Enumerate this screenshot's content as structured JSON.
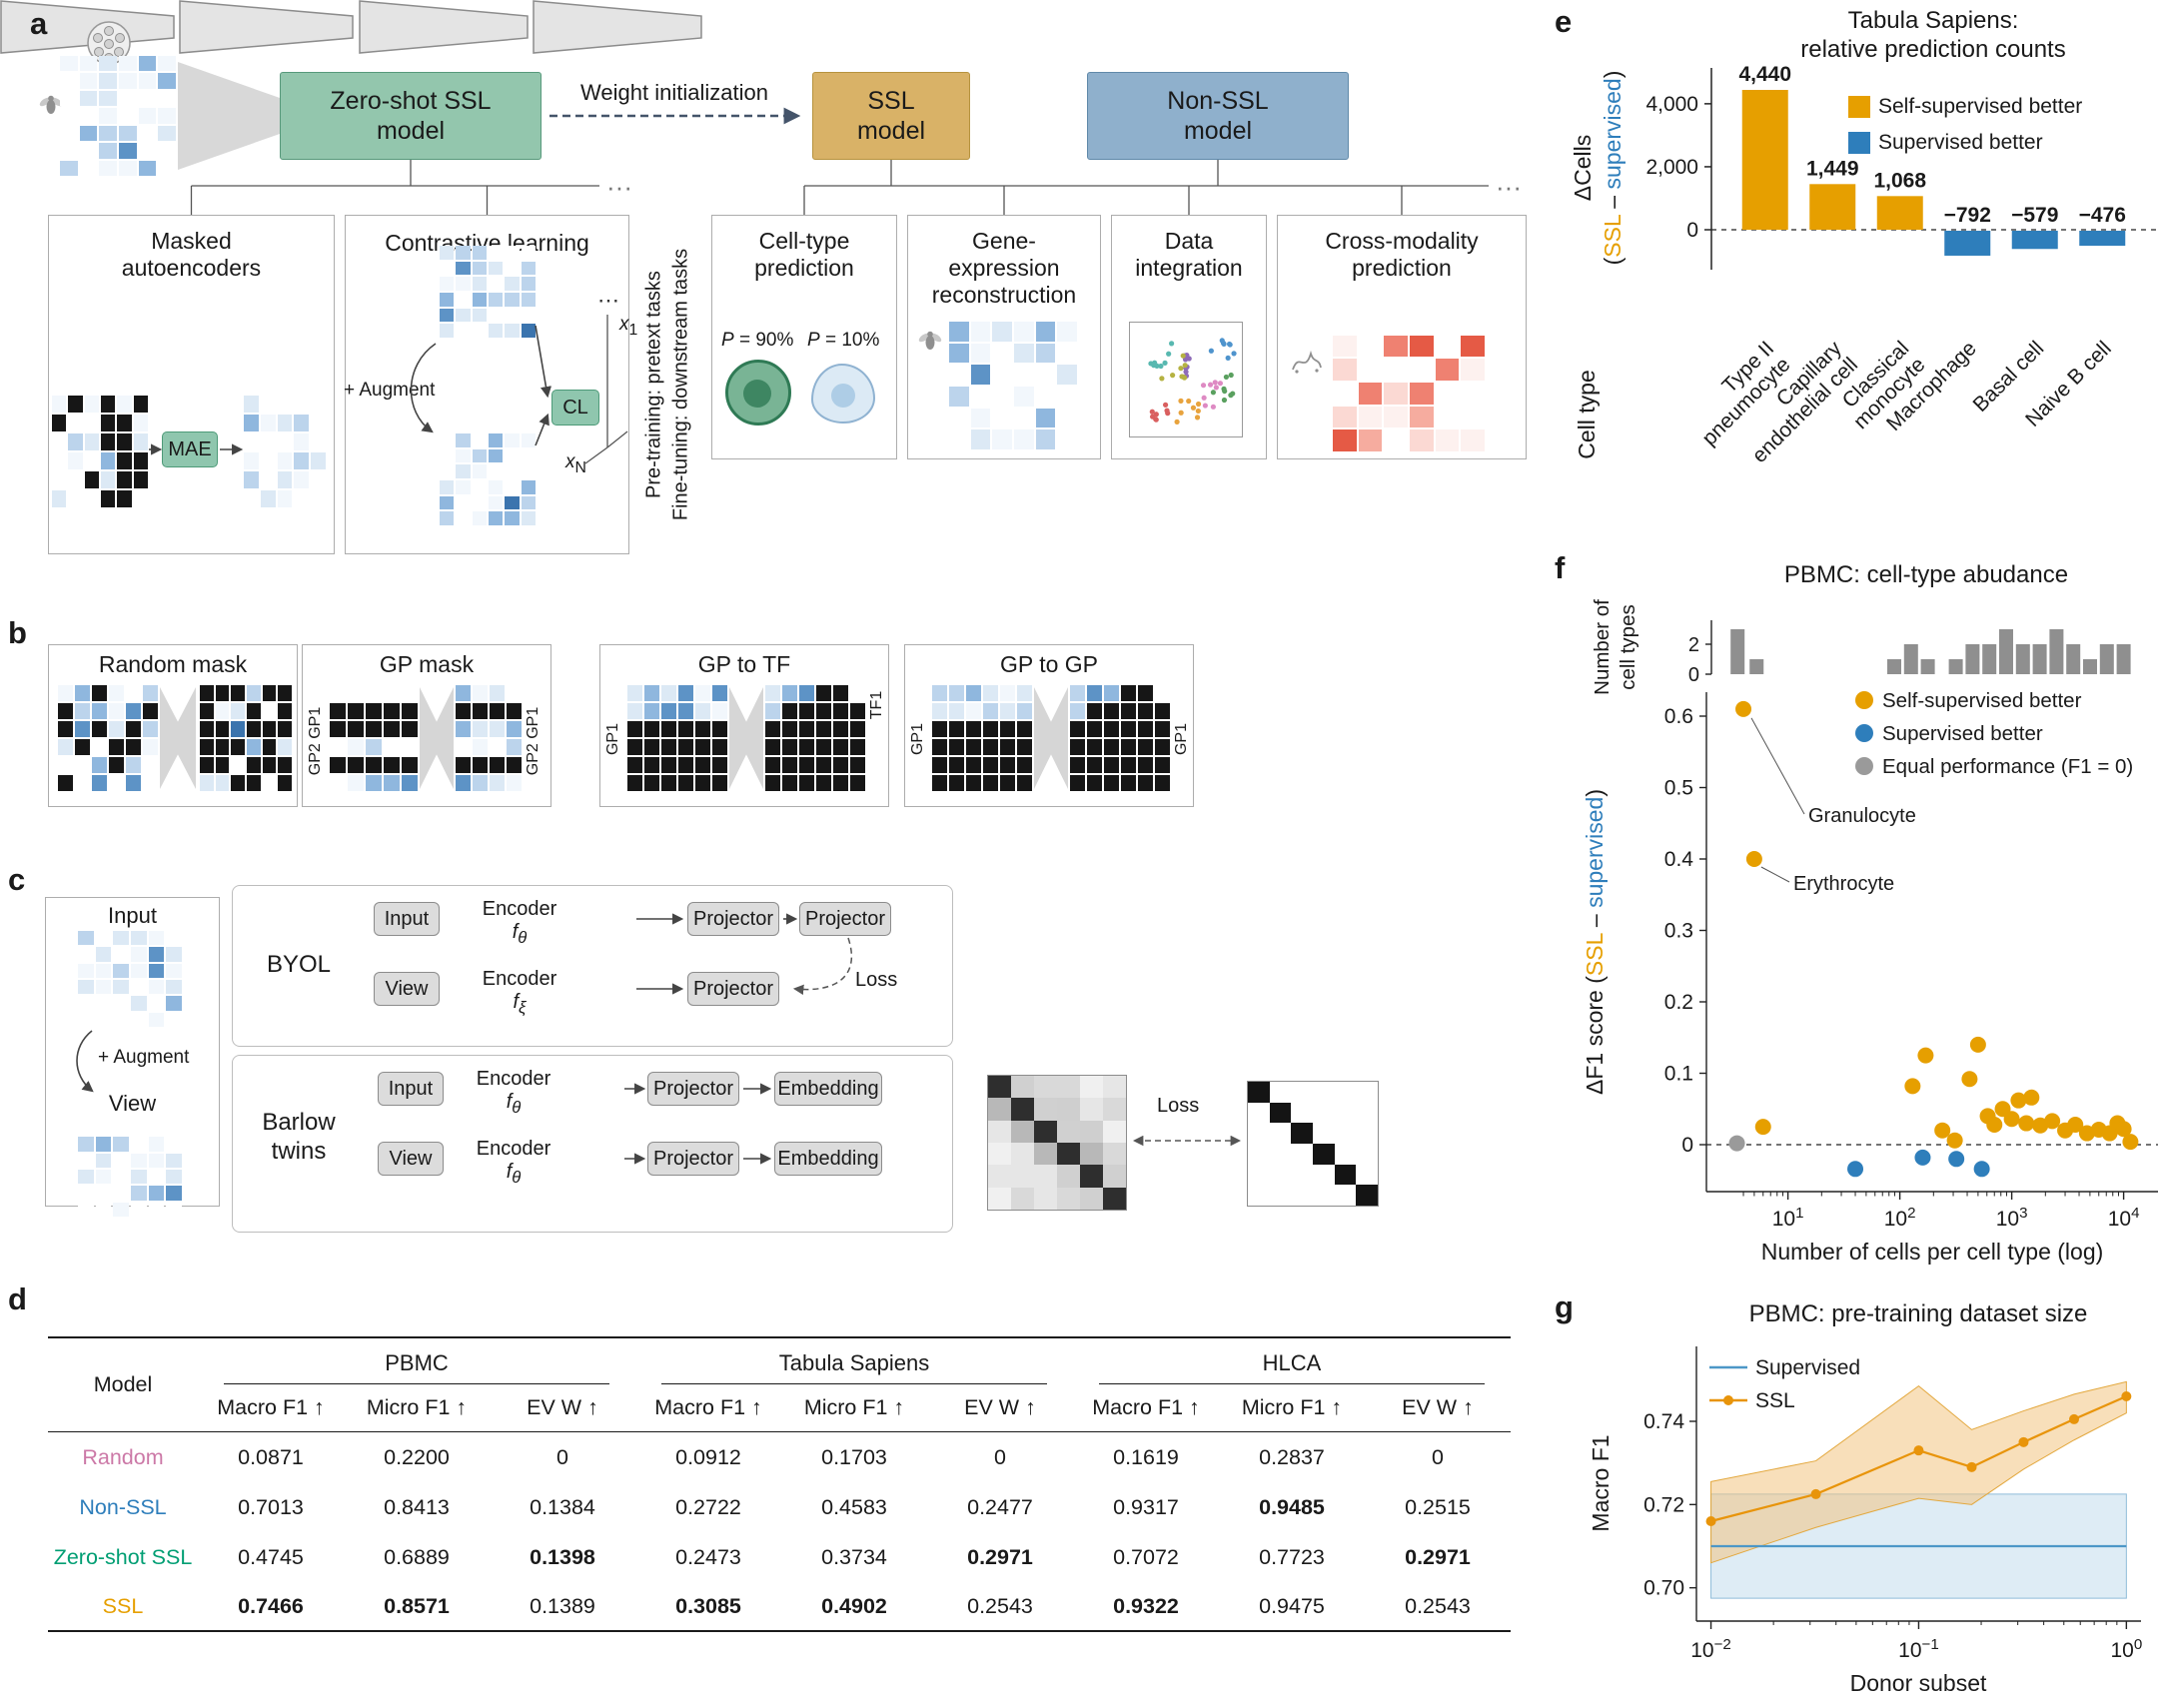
{
  "panel_a": {
    "label": "a",
    "zero_shot_box": "Zero-shot SSL\nmodel",
    "ssl_box": "SSL\nmodel",
    "non_ssl_box": "Non-SSL\nmodel",
    "weight_init": "Weight initialization",
    "ellipsis_pretext": "···",
    "ellipsis_downstream": "···",
    "masked_ae_title": "Masked\nautoencoders",
    "contrastive_title": "Contrastive learning",
    "mae_chip": "MAE",
    "cl_chip": "CL",
    "augment": "+ Augment",
    "axis_top_dots": "⋯",
    "axis_x1_base": "x",
    "axis_x1_sub": "1",
    "axis_xn_base": "x",
    "axis_xn_sub": "N",
    "side_label_pretrain": "Pre-training: pretext tasks",
    "side_label_finetune": "Fine-tuning: downstream tasks",
    "task_celltype": "Cell-type\nprediction",
    "task_gene": "Gene-\nexpression\nreconstruction",
    "task_integration": "Data\nintegration",
    "task_crossmodality": "Cross-modality\nprediction",
    "p_high": {
      "p": "P",
      "rest": " = 90%"
    },
    "p_low": {
      "p": "P",
      "rest": " = 10%"
    }
  },
  "panel_b": {
    "label": "b",
    "boxes": [
      {
        "title": "Random mask",
        "left": "",
        "right": ""
      },
      {
        "title": "GP mask",
        "left": "GP2 GP1",
        "right": "GP2 GP1"
      },
      {
        "title": "GP to TF",
        "left": "GP1",
        "right": "TF1"
      },
      {
        "title": "GP to GP",
        "left": "GP1",
        "right": "GP1"
      }
    ]
  },
  "panel_c": {
    "label": "c",
    "input_label": "Input",
    "view_label": "View",
    "augment": "+ Augment",
    "byol_label": "BYOL",
    "barlow_label": "Barlow\ntwins",
    "input_chip": "Input",
    "view_chip": "View",
    "encoder": "Encoder",
    "f_base": "f",
    "theta_sub": "θ",
    "xi_sub": "ξ",
    "projector": "Projector",
    "embedding": "Embedding",
    "loss": "Loss"
  },
  "panel_d": {
    "label": "d",
    "model_header": "Model",
    "groups": [
      "PBMC",
      "Tabula Sapiens",
      "HLCA"
    ],
    "metrics": [
      "Macro F1 ↑",
      "Micro F1 ↑",
      "EV W ↑",
      "Macro F1 ↑",
      "Micro F1 ↑",
      "EV W ↑",
      "Macro F1 ↑",
      "Micro F1 ↑",
      "EV W ↑"
    ],
    "rows": [
      {
        "model": "Random",
        "color": "#CC79A7",
        "values": [
          "0.0871",
          "0.2200",
          "0",
          "0.0912",
          "0.1703",
          "0",
          "0.1619",
          "0.2837",
          "0"
        ],
        "bold": [
          0,
          0,
          0,
          0,
          0,
          0,
          0,
          0,
          0
        ]
      },
      {
        "model": "Non-SSL",
        "color": "#2E7EBB",
        "values": [
          "0.7013",
          "0.8413",
          "0.1384",
          "0.2722",
          "0.4583",
          "0.2477",
          "0.9317",
          "0.9485",
          "0.2515"
        ],
        "bold": [
          0,
          0,
          0,
          0,
          0,
          0,
          0,
          1,
          0
        ]
      },
      {
        "model": "Zero-shot SSL",
        "color": "#009E73",
        "values": [
          "0.4745",
          "0.6889",
          "0.1398",
          "0.2473",
          "0.3734",
          "0.2971",
          "0.7072",
          "0.7723",
          "0.2971"
        ],
        "bold": [
          0,
          0,
          1,
          0,
          0,
          1,
          0,
          0,
          1
        ]
      },
      {
        "model": "SSL",
        "color": "#E69F00",
        "values": [
          "0.7466",
          "0.8571",
          "0.1389",
          "0.3085",
          "0.4902",
          "0.2543",
          "0.9322",
          "0.9475",
          "0.2543"
        ],
        "bold": [
          1,
          1,
          0,
          1,
          1,
          0,
          1,
          0,
          0
        ]
      }
    ]
  },
  "chart_data": [
    {
      "id": "e",
      "type": "bar",
      "panel_label": "e",
      "title_lines": [
        "Tabula Sapiens:",
        "relative prediction counts"
      ],
      "categories": [
        "Type II\npneumocyte",
        "Capillary\nendothelial cell",
        "Classical\nmonocyte",
        "Macrophage",
        "Basal cell",
        "Naive B cell"
      ],
      "values": [
        4440,
        1449,
        1068,
        -792,
        -579,
        -476
      ],
      "bar_labels": [
        "4,440",
        "1,449",
        "1,068",
        "−792",
        "−579",
        "−476"
      ],
      "bar_colors": [
        "#E69F00",
        "#E69F00",
        "#E69F00",
        "#2E7EBB",
        "#2E7EBB",
        "#2E7EBB"
      ],
      "ylim": [
        -1100,
        4900
      ],
      "yticks": [
        {
          "v": 0,
          "label": "0"
        },
        {
          "v": 2000,
          "label": "2,000"
        },
        {
          "v": 4000,
          "label": "4,000"
        }
      ],
      "ylabel_line1": "ΔCells",
      "ylabel_line2_parts": [
        {
          "t": "("
        },
        {
          "t": "SSL",
          "c": "#E69F00"
        },
        {
          "t": " – "
        },
        {
          "t": "supervised",
          "c": "#2E7EBB"
        },
        {
          "t": ")"
        }
      ],
      "row_axis_label": "Cell type",
      "legend": [
        {
          "label": "Self-supervised better",
          "color": "#E69F00"
        },
        {
          "label": "Supervised better",
          "color": "#2E7EBB"
        }
      ]
    },
    {
      "id": "f",
      "type": "scatter",
      "panel_label": "f",
      "title": "PBMC: cell-type abudance",
      "hist": {
        "ylabel_lines": [
          "Number of",
          "cell types"
        ],
        "yticks": [
          {
            "v": 0,
            "label": "0"
          },
          {
            "v": 2,
            "label": "2"
          }
        ],
        "bars": [
          [
            0.55,
            3
          ],
          [
            0.72,
            1
          ],
          [
            1.95,
            1
          ],
          [
            2.1,
            2
          ],
          [
            2.25,
            1
          ],
          [
            2.5,
            1
          ],
          [
            2.65,
            2
          ],
          [
            2.8,
            2
          ],
          [
            2.95,
            3
          ],
          [
            3.1,
            2
          ],
          [
            3.25,
            2
          ],
          [
            3.4,
            3
          ],
          [
            3.55,
            2
          ],
          [
            3.7,
            1
          ],
          [
            3.85,
            2
          ],
          [
            4.0,
            2
          ]
        ]
      },
      "xlabel": "Number of cells per cell type (log)",
      "ylabel_parts": [
        {
          "t": "ΔF1 score ("
        },
        {
          "t": "SSL",
          "c": "#E69F00"
        },
        {
          "t": " – "
        },
        {
          "t": "supervised",
          "c": "#2E7EBB"
        },
        {
          "t": ")"
        }
      ],
      "xlim_log10": [
        0.45,
        4.2
      ],
      "ylim": [
        -0.08,
        0.65
      ],
      "xticks": [
        {
          "log10": 1,
          "exp": "1"
        },
        {
          "log10": 2,
          "exp": "2"
        },
        {
          "log10": 3,
          "exp": "3"
        },
        {
          "log10": 4,
          "exp": "4"
        }
      ],
      "yticks": [
        {
          "v": 0,
          "label": "0"
        },
        {
          "v": 0.1,
          "label": "0.1"
        },
        {
          "v": 0.2,
          "label": "0.2"
        },
        {
          "v": 0.3,
          "label": "0.3"
        },
        {
          "v": 0.4,
          "label": "0.4"
        },
        {
          "v": 0.5,
          "label": "0.5"
        },
        {
          "v": 0.6,
          "label": "0.6"
        }
      ],
      "legend": [
        {
          "label": "Self-supervised better",
          "color": "#E69F00"
        },
        {
          "label": "Supervised better",
          "color": "#2E7EBB"
        },
        {
          "label": "Equal performance (F1 = 0)",
          "color": "#9A9A9A"
        }
      ],
      "annotations": [
        {
          "label": "Granulocyte",
          "x": 4,
          "y": 0.61
        },
        {
          "label": "Erythrocyte",
          "x": 5,
          "y": 0.4
        }
      ],
      "series": [
        {
          "name": "Self-supervised better",
          "color": "#E69F00",
          "points": [
            [
              4,
              0.61
            ],
            [
              5,
              0.4
            ],
            [
              6,
              0.025
            ],
            [
              130,
              0.082
            ],
            [
              170,
              0.125
            ],
            [
              240,
              0.02
            ],
            [
              310,
              0.006
            ],
            [
              420,
              0.092
            ],
            [
              500,
              0.14
            ],
            [
              610,
              0.04
            ],
            [
              700,
              0.028
            ],
            [
              830,
              0.05
            ],
            [
              1000,
              0.036
            ],
            [
              1150,
              0.062
            ],
            [
              1350,
              0.03
            ],
            [
              1500,
              0.066
            ],
            [
              1800,
              0.027
            ],
            [
              2300,
              0.033
            ],
            [
              3000,
              0.02
            ],
            [
              3700,
              0.028
            ],
            [
              4700,
              0.016
            ],
            [
              6000,
              0.021
            ],
            [
              7500,
              0.016
            ],
            [
              8800,
              0.03
            ],
            [
              10000,
              0.022
            ],
            [
              11500,
              0.004
            ]
          ]
        },
        {
          "name": "Supervised better",
          "color": "#2E7EBB",
          "points": [
            [
              40,
              -0.034
            ],
            [
              160,
              -0.018
            ],
            [
              320,
              -0.02
            ],
            [
              540,
              -0.034
            ]
          ]
        },
        {
          "name": "Equal performance",
          "color": "#9A9A9A",
          "points": [
            [
              3.5,
              0.002
            ]
          ]
        }
      ]
    },
    {
      "id": "g",
      "type": "line",
      "panel_label": "g",
      "title": "PBMC: pre-training dataset size",
      "xlabel": "Donor subset",
      "ylabel": "Macro F1",
      "xlim_log10": [
        -2.07,
        0.07
      ],
      "ylim": [
        0.692,
        0.758
      ],
      "xticks": [
        {
          "log10": -2,
          "exp": "−2"
        },
        {
          "log10": -1,
          "exp": "−1"
        },
        {
          "log10": 0,
          "exp": "0"
        }
      ],
      "yticks": [
        {
          "v": 0.7,
          "label": "0.70"
        },
        {
          "v": 0.72,
          "label": "0.72"
        },
        {
          "v": 0.74,
          "label": "0.74"
        }
      ],
      "legend": [
        {
          "label": "Supervised",
          "color": "#4C97C7"
        },
        {
          "label": "SSL",
          "color": "#E8940A"
        }
      ],
      "series": [
        {
          "name": "Supervised",
          "color": "#4C97C7",
          "band_color": "#D3E6F2",
          "band_edge": "#8FBCD9",
          "markers": false,
          "x": [
            0.01,
            1.0
          ],
          "y": [
            0.71,
            0.71
          ],
          "band_low": [
            0.6975,
            0.6975
          ],
          "band_high": [
            0.7225,
            0.7225
          ]
        },
        {
          "name": "SSL",
          "color": "#E8940A",
          "band_color": "#F2C581",
          "band_edge": "#E3A83E",
          "markers": true,
          "x": [
            0.01,
            0.032,
            0.1,
            0.18,
            0.32,
            0.56,
            1.0
          ],
          "y": [
            0.716,
            0.7225,
            0.733,
            0.729,
            0.735,
            0.7405,
            0.746
          ],
          "band_low": [
            0.706,
            0.7145,
            0.7215,
            0.72,
            0.7285,
            0.7355,
            0.742
          ],
          "band_high": [
            0.7255,
            0.7305,
            0.7485,
            0.738,
            0.7425,
            0.7465,
            0.7495
          ]
        }
      ]
    }
  ]
}
